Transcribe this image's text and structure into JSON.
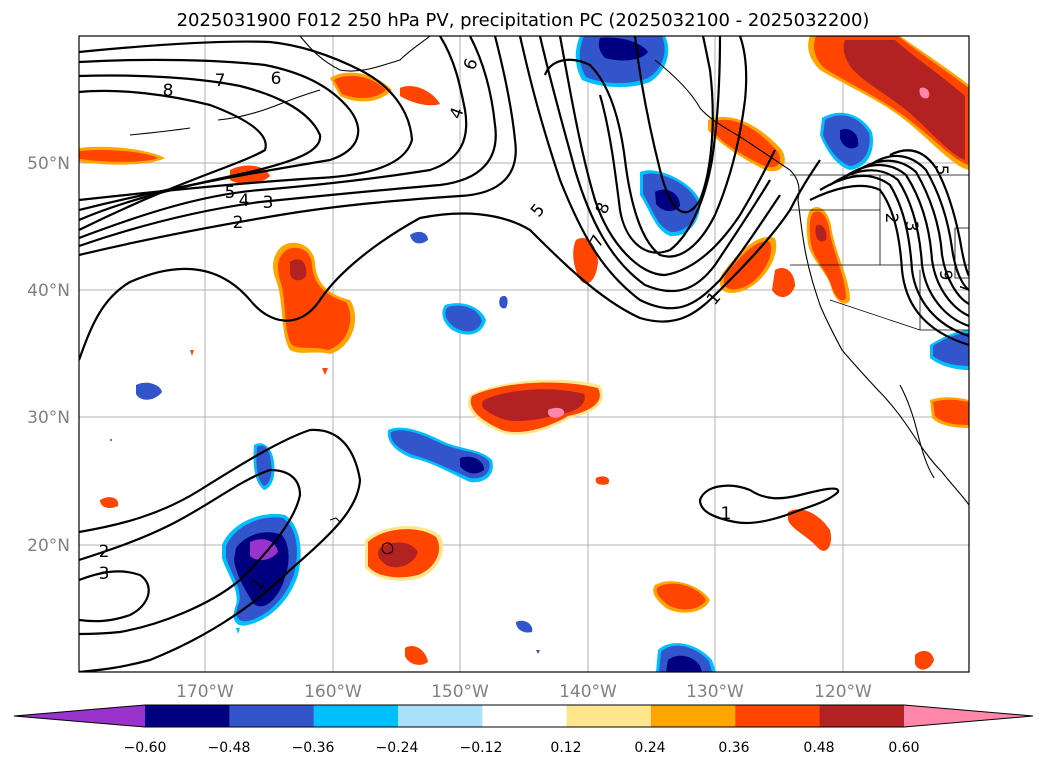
{
  "title": "2025031900 F012 250 hPa PV, precipitation PC (2025032100 - 2025032200)",
  "map": {
    "lat_labels": [
      "20°N",
      "30°N",
      "40°N",
      "50°N"
    ],
    "lon_labels": [
      "170°W",
      "160°W",
      "150°W",
      "140°W",
      "130°W",
      "120°W"
    ],
    "gridlines": true,
    "pv_contour_labels": [
      "8",
      "7",
      "6",
      "5",
      "4",
      "3",
      "2",
      "1",
      "6",
      "4",
      "5",
      "8",
      "7",
      "1",
      "5",
      "2",
      "3",
      "9",
      "7",
      "2",
      "3",
      "1"
    ]
  },
  "colorbar": {
    "ticks": [
      "−0.60",
      "−0.48",
      "−0.36",
      "−0.24",
      "−0.12",
      "0.12",
      "0.24",
      "0.36",
      "0.48",
      "0.60"
    ],
    "colors": [
      "#9933cc",
      "#000080",
      "#3355cc",
      "#00bfff",
      "#aae0fa",
      "#ffffff",
      "#ffe68c",
      "#ffa500",
      "#ff4500",
      "#b22222",
      "#ff88aa"
    ],
    "extend": "both"
  }
}
